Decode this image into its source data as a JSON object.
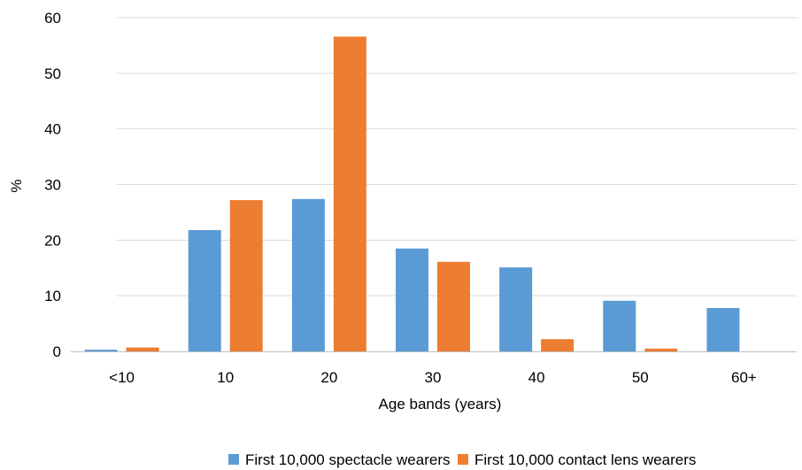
{
  "chart_data": {
    "type": "bar",
    "categories": [
      "<10",
      "10",
      "20",
      "30",
      "40",
      "50",
      "60+"
    ],
    "series": [
      {
        "name": "First 10,000 spectacle wearers",
        "color": "#5b9bd5",
        "values": [
          0.3,
          21.8,
          27.4,
          18.5,
          15.1,
          9.1,
          7.8
        ]
      },
      {
        "name": "First 10,000 contact lens wearers",
        "color": "#ed7d31",
        "values": [
          0.7,
          27.2,
          56.6,
          16.1,
          2.2,
          0.5,
          0
        ]
      }
    ],
    "xlabel": "Age bands (years)",
    "ylabel": "%",
    "ylim": [
      0,
      60
    ],
    "yticks": [
      "0",
      "10",
      "20",
      "30",
      "40",
      "50",
      "60"
    ],
    "grid": true,
    "legend": "bottom"
  }
}
